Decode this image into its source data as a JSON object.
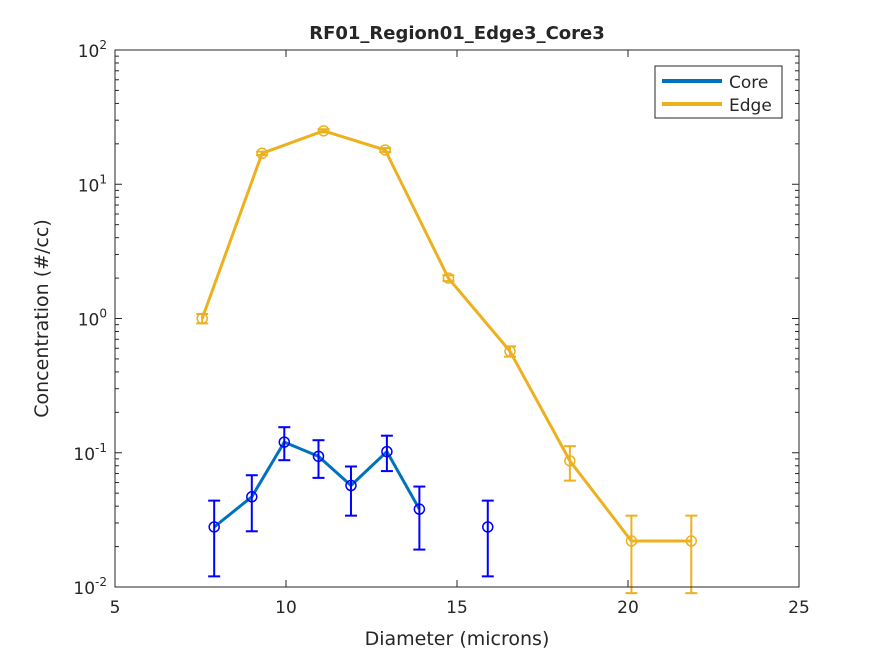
{
  "chart_data": {
    "type": "line",
    "title": "RF01_Region01_Edge3_Core3",
    "xlabel": "Diameter (microns)",
    "ylabel": "Concentration (#/cc)",
    "xlim": [
      5,
      25
    ],
    "ylim": [
      0.01,
      100
    ],
    "yscale": "log",
    "grid": false,
    "legend_position": "top-right",
    "x_ticks": [
      {
        "value": 5,
        "label": "5"
      },
      {
        "value": 10,
        "label": "10"
      },
      {
        "value": 15,
        "label": "15"
      },
      {
        "value": 20,
        "label": "20"
      },
      {
        "value": 25,
        "label": "25"
      }
    ],
    "y_ticks": [
      {
        "value": 0.01,
        "base": "10",
        "exp": "-2"
      },
      {
        "value": 0.1,
        "base": "10",
        "exp": "-1"
      },
      {
        "value": 1,
        "base": "10",
        "exp": "0"
      },
      {
        "value": 10,
        "base": "10",
        "exp": "1"
      },
      {
        "value": 100,
        "base": "10",
        "exp": "2"
      }
    ],
    "series": [
      {
        "name": "Core",
        "line_color": "#0072BD",
        "marker_color": "#0000FF",
        "line_segments": [
          [
            0,
            1,
            2,
            3,
            4,
            5,
            6
          ]
        ],
        "points": [
          {
            "x": 7.9,
            "y": 0.028,
            "ylo": 0.012,
            "yhi": 0.044
          },
          {
            "x": 9.0,
            "y": 0.047,
            "ylo": 0.026,
            "yhi": 0.068
          },
          {
            "x": 9.95,
            "y": 0.12,
            "ylo": 0.088,
            "yhi": 0.155
          },
          {
            "x": 10.95,
            "y": 0.094,
            "ylo": 0.065,
            "yhi": 0.124
          },
          {
            "x": 11.9,
            "y": 0.057,
            "ylo": 0.034,
            "yhi": 0.079
          },
          {
            "x": 12.95,
            "y": 0.102,
            "ylo": 0.073,
            "yhi": 0.134
          },
          {
            "x": 13.9,
            "y": 0.038,
            "ylo": 0.019,
            "yhi": 0.056
          },
          {
            "x": 15.9,
            "y": 0.028,
            "ylo": 0.012,
            "yhi": 0.044
          }
        ]
      },
      {
        "name": "Edge",
        "line_color": "#EDB120",
        "marker_color": "#EDB120",
        "line_segments": [
          [
            0,
            1,
            2,
            3,
            4,
            5,
            6,
            7,
            8
          ]
        ],
        "points": [
          {
            "x": 7.55,
            "y": 1.0,
            "ylo": 0.92,
            "yhi": 1.08
          },
          {
            "x": 9.3,
            "y": 17.0,
            "ylo": 16.5,
            "yhi": 17.5
          },
          {
            "x": 11.1,
            "y": 25.0,
            "ylo": 24.3,
            "yhi": 25.7
          },
          {
            "x": 12.9,
            "y": 18.0,
            "ylo": 17.4,
            "yhi": 18.6
          },
          {
            "x": 14.75,
            "y": 2.0,
            "ylo": 1.9,
            "yhi": 2.1
          },
          {
            "x": 16.55,
            "y": 0.57,
            "ylo": 0.52,
            "yhi": 0.62
          },
          {
            "x": 18.3,
            "y": 0.087,
            "ylo": 0.062,
            "yhi": 0.112
          },
          {
            "x": 20.1,
            "y": 0.022,
            "ylo": 0.009,
            "yhi": 0.034
          },
          {
            "x": 21.85,
            "y": 0.022,
            "ylo": 0.009,
            "yhi": 0.034
          }
        ]
      }
    ]
  }
}
